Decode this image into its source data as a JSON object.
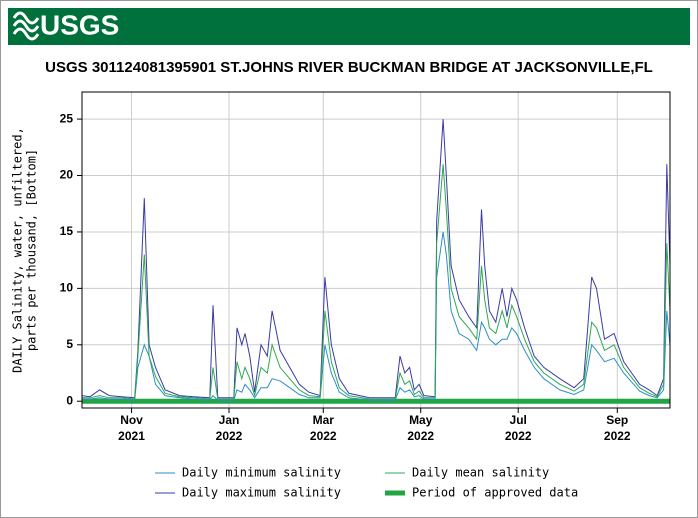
{
  "header": {
    "logo": "USGS"
  },
  "chart_data": {
    "type": "line",
    "title": "USGS 301124081395901 ST.JOHNS RIVER BUCKMAN BRIDGE AT JACKSONVILLE,FL",
    "ylabel": [
      "DAILY Salinity, water, unfiltered,",
      "parts per thousand, [Bottom]"
    ],
    "x": [
      0,
      5,
      11,
      17,
      25,
      33,
      35,
      39,
      42,
      46,
      52,
      61,
      70,
      80,
      82,
      85,
      90,
      95,
      97,
      100,
      102,
      105,
      108,
      112,
      116,
      119,
      124,
      130,
      136,
      142,
      149,
      152,
      156,
      161,
      167,
      180,
      190,
      196,
      199,
      202,
      205,
      208,
      211,
      214,
      221,
      222,
      226,
      228,
      231,
      236,
      242,
      247,
      250,
      252,
      255,
      259,
      263,
      266,
      269,
      272,
      277,
      283,
      289,
      299,
      308,
      314,
      319,
      322,
      327,
      333,
      339,
      349,
      355,
      360,
      364,
      366,
      368
    ],
    "series": [
      {
        "name": "Daily minimum salinity",
        "color": "#2a8fc8",
        "values": [
          0.2,
          0.2,
          0.3,
          0.2,
          0.2,
          0.1,
          3,
          5,
          4,
          1.5,
          0.5,
          0.3,
          0.2,
          0.1,
          0.5,
          0.1,
          0.1,
          0.1,
          1,
          0.8,
          1.5,
          1,
          0.3,
          1.2,
          1.2,
          2,
          1.8,
          1.2,
          0.6,
          0.3,
          0.3,
          5,
          2.5,
          0.8,
          0.3,
          0.1,
          0.1,
          0.1,
          1.2,
          0.8,
          1,
          0.4,
          0.5,
          0.2,
          0.2,
          11,
          15,
          13,
          8,
          6,
          5.5,
          4.5,
          7,
          6.5,
          5.5,
          5,
          5.5,
          5.5,
          6.5,
          6,
          4.5,
          3,
          2,
          1,
          0.6,
          1,
          5,
          4.5,
          3.5,
          3.8,
          2.5,
          0.9,
          0.5,
          0.3,
          1,
          8,
          5
        ]
      },
      {
        "name": "Daily maximum salinity",
        "color": "#3a3aa8",
        "values": [
          0.5,
          0.4,
          1,
          0.5,
          0.4,
          0.3,
          4.5,
          18,
          5,
          3,
          1,
          0.5,
          0.4,
          0.3,
          8.5,
          0.3,
          0.3,
          0.3,
          6.5,
          5,
          6,
          4,
          0.8,
          5,
          4,
          8,
          4.5,
          3,
          1.5,
          0.8,
          0.5,
          11,
          5,
          2,
          0.7,
          0.3,
          0.3,
          0.3,
          4,
          2.5,
          3,
          1,
          1.5,
          0.5,
          0.4,
          16,
          25,
          20,
          12,
          9,
          7.5,
          6.5,
          17,
          12,
          8,
          7,
          10,
          7.5,
          10,
          9,
          6.5,
          4,
          3,
          2,
          1.2,
          2,
          11,
          10,
          5.5,
          6,
          3.5,
          1.5,
          1,
          0.5,
          2,
          21,
          12
        ]
      },
      {
        "name": "Daily mean salinity",
        "color": "#2fa84f",
        "values": [
          0.3,
          0.3,
          0.5,
          0.3,
          0.3,
          0.2,
          4,
          13,
          4,
          2.2,
          0.7,
          0.4,
          0.3,
          0.2,
          3,
          0.2,
          0.2,
          0.2,
          3.5,
          2,
          3,
          2,
          0.5,
          3,
          2.5,
          5,
          3,
          2,
          1,
          0.5,
          0.4,
          8,
          3.5,
          1.2,
          0.5,
          0.2,
          0.2,
          0.2,
          2.5,
          1.5,
          1.8,
          0.6,
          0.9,
          0.3,
          0.3,
          14,
          21,
          17,
          10,
          7.5,
          6.5,
          5.5,
          12,
          9,
          6.5,
          6,
          8,
          6.5,
          8.5,
          7.5,
          5.5,
          3.5,
          2.5,
          1.5,
          0.9,
          1.5,
          7,
          6.5,
          4.5,
          5,
          3,
          1.2,
          0.7,
          0.4,
          1.5,
          14,
          8
        ]
      }
    ],
    "approved": {
      "name": "Period of approved data",
      "color": "#22a544"
    },
    "xlim": [
      0,
      368
    ],
    "xticks": [
      {
        "value": 31,
        "label": "Nov 2021"
      },
      {
        "value": 92,
        "label": "Jan 2022"
      },
      {
        "value": 151,
        "label": "Mar 2022"
      },
      {
        "value": 212,
        "label": "May 2022"
      },
      {
        "value": 273,
        "label": "Jul 2022"
      },
      {
        "value": 335,
        "label": "Sep 2022"
      }
    ],
    "ylim": [
      -0.6,
      27.4
    ],
    "yticks": [
      0,
      5,
      10,
      15,
      20,
      25
    ],
    "grid": true
  }
}
